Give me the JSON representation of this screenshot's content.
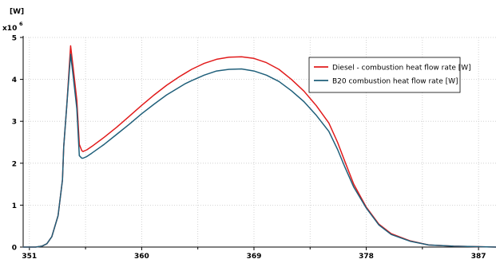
{
  "chart_data": {
    "type": "line",
    "title": "",
    "xlabel": "",
    "ylabel": "[W]",
    "y_multiplier": "x10",
    "y_multiplier_exp": "6",
    "xlim": [
      350.5,
      388.4
    ],
    "ylim": [
      0,
      5
    ],
    "x_ticks": [
      351,
      360,
      369,
      378,
      387
    ],
    "y_ticks": [
      0,
      1,
      2,
      3,
      4,
      5
    ],
    "grid": true,
    "legend_position": "top-right",
    "series": [
      {
        "name": "Diesel - combustion heat flow rate [W]",
        "color": "#e11b1b",
        "x": [
          350.5,
          351.5,
          352.0,
          352.4,
          352.8,
          353.3,
          353.65,
          353.75,
          354.0,
          354.3,
          354.5,
          354.8,
          355.0,
          355.2,
          355.3,
          355.6,
          356.0,
          357.0,
          358.0,
          359.0,
          360.0,
          361.0,
          362.0,
          363.0,
          363.5,
          364.0,
          365.0,
          366.0,
          367.0,
          368.0,
          369.0,
          370.0,
          371.0,
          372.0,
          373.0,
          374.0,
          375.0,
          375.7,
          376.3,
          377.0,
          378.0,
          379.0,
          380.0,
          381.5,
          383.0,
          385.0,
          388.4
        ],
        "y": [
          0,
          0,
          0.02,
          0.08,
          0.25,
          0.75,
          1.6,
          2.4,
          3.4,
          4.8,
          4.3,
          3.5,
          2.45,
          2.3,
          2.28,
          2.32,
          2.4,
          2.62,
          2.86,
          3.12,
          3.38,
          3.63,
          3.86,
          4.06,
          4.15,
          4.24,
          4.38,
          4.48,
          4.53,
          4.54,
          4.5,
          4.4,
          4.24,
          4.0,
          3.72,
          3.37,
          2.96,
          2.5,
          2.03,
          1.5,
          0.95,
          0.55,
          0.32,
          0.15,
          0.05,
          0.02,
          0
        ],
        "y_x1e6_note": "values in units of 1e6 W"
      },
      {
        "name": "B20 combustion heat flow rate [W]",
        "color": "#1f5f7a",
        "x": [
          350.5,
          351.5,
          352.0,
          352.4,
          352.8,
          353.3,
          353.65,
          353.75,
          354.0,
          354.3,
          354.5,
          354.8,
          355.0,
          355.2,
          355.3,
          355.6,
          356.0,
          357.0,
          358.0,
          359.0,
          360.0,
          361.0,
          362.0,
          363.0,
          363.5,
          364.0,
          365.0,
          366.0,
          367.0,
          368.0,
          369.0,
          370.0,
          371.0,
          372.0,
          373.0,
          374.0,
          375.0,
          375.7,
          376.3,
          377.0,
          378.0,
          379.0,
          380.0,
          381.5,
          383.0,
          385.0,
          388.4
        ],
        "y": [
          0,
          0,
          0.02,
          0.08,
          0.25,
          0.75,
          1.6,
          2.4,
          3.4,
          4.6,
          4.1,
          3.3,
          2.18,
          2.12,
          2.12,
          2.16,
          2.24,
          2.45,
          2.69,
          2.93,
          3.18,
          3.41,
          3.63,
          3.81,
          3.9,
          3.97,
          4.1,
          4.2,
          4.24,
          4.25,
          4.2,
          4.1,
          3.95,
          3.73,
          3.47,
          3.14,
          2.76,
          2.33,
          1.9,
          1.43,
          0.93,
          0.53,
          0.3,
          0.14,
          0.05,
          0.02,
          0
        ]
      }
    ]
  }
}
